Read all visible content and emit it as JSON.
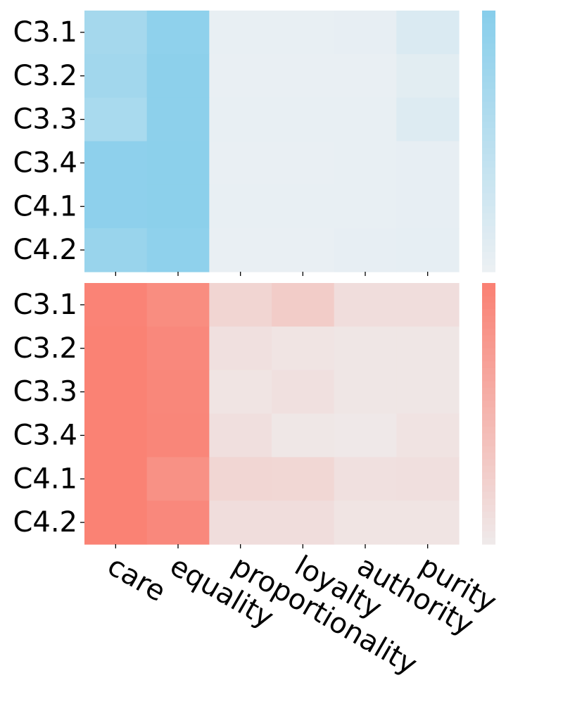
{
  "chart_data": [
    {
      "type": "heatmap",
      "categories": [
        "care",
        "equality",
        "proportionality",
        "loyalty",
        "authority",
        "purity"
      ],
      "rows": [
        "C3.1",
        "C3.2",
        "C3.3",
        "C3.4",
        "C4.1",
        "C4.2"
      ],
      "values": [
        [
          0.7,
          0.92,
          0.04,
          0.04,
          0.05,
          0.18
        ],
        [
          0.73,
          0.94,
          0.03,
          0.03,
          0.03,
          0.1
        ],
        [
          0.66,
          0.94,
          0.04,
          0.04,
          0.04,
          0.15
        ],
        [
          0.93,
          0.95,
          0.03,
          0.03,
          0.04,
          0.05
        ],
        [
          0.93,
          0.95,
          0.04,
          0.04,
          0.04,
          0.05
        ],
        [
          0.82,
          0.92,
          0.03,
          0.03,
          0.05,
          0.06
        ]
      ],
      "color_low": "#ecf0f3",
      "color_high": "#87ceeb",
      "vmin": 0,
      "vmax": 1,
      "colorbar": true,
      "grid": false
    },
    {
      "type": "heatmap",
      "categories": [
        "care",
        "equality",
        "proportionality",
        "loyalty",
        "authority",
        "purity"
      ],
      "rows": [
        "C3.1",
        "C3.2",
        "C3.3",
        "C3.4",
        "C4.1",
        "C4.2"
      ],
      "values": [
        [
          0.97,
          0.88,
          0.2,
          0.28,
          0.12,
          0.12
        ],
        [
          0.98,
          0.92,
          0.09,
          0.06,
          0.04,
          0.04
        ],
        [
          0.98,
          0.93,
          0.06,
          0.09,
          0.04,
          0.04
        ],
        [
          0.98,
          0.94,
          0.1,
          0.03,
          0.02,
          0.07
        ],
        [
          0.98,
          0.84,
          0.19,
          0.18,
          0.09,
          0.1
        ],
        [
          0.98,
          0.92,
          0.12,
          0.12,
          0.06,
          0.06
        ]
      ],
      "color_low": "#efeaea",
      "color_high": "#fa8072",
      "vmin": 0,
      "vmax": 1,
      "colorbar": true,
      "grid": false
    }
  ]
}
